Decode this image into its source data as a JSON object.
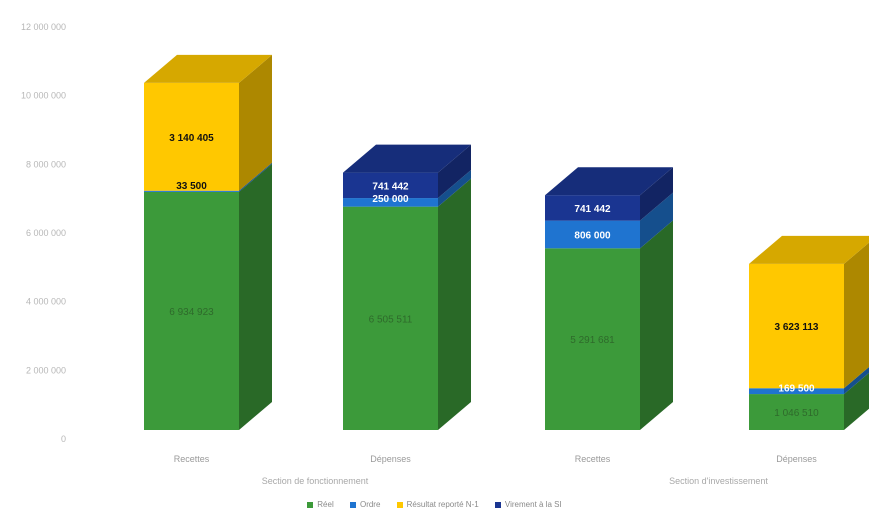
{
  "chart_data": {
    "type": "bar",
    "stacked": true,
    "three_d": true,
    "categories": [
      "Recettes",
      "Dépenses",
      "Recettes",
      "Dépenses"
    ],
    "groups": [
      {
        "name": "Section de fonctionnement",
        "categories": [
          0,
          1
        ]
      },
      {
        "name": "Section d'investissement",
        "categories": [
          2,
          3
        ]
      }
    ],
    "series": [
      {
        "name": "Réel",
        "color": "#3c9a3a",
        "values": [
          6934923,
          6505511,
          5291681,
          1046510
        ],
        "labels": [
          "6 934 923",
          "6 505 511",
          "5 291 681",
          "1 046 510"
        ]
      },
      {
        "name": "Ordre",
        "color": "#1f74d0",
        "values": [
          33500,
          250000,
          806000,
          169500
        ],
        "labels": [
          "33 500",
          "250 000",
          "806 000",
          "169 500"
        ]
      },
      {
        "name": "Résultat reporté N-1",
        "color": "#ffc800",
        "values": [
          3140405,
          0,
          0,
          3623113
        ],
        "labels": [
          "3 140 405",
          "",
          "",
          "3 623 113"
        ]
      },
      {
        "name": "Virement à la SI",
        "color": "#1a3591",
        "values": [
          0,
          741442,
          741442,
          0
        ],
        "labels": [
          "",
          "741 442",
          "741 442",
          ""
        ]
      }
    ],
    "yticks": [
      "0",
      "2 000 000",
      "4 000 000",
      "6 000 000",
      "8 000 000",
      "10 000 000",
      "12 000 000"
    ],
    "ylim": [
      0,
      12000000
    ],
    "legend_position": "bottom",
    "grid": false
  }
}
